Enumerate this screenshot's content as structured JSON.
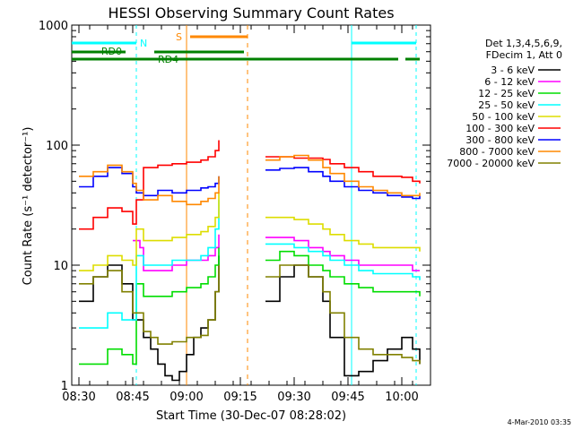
{
  "chart_data": {
    "type": "line",
    "title": "HESSI Observing Summary Count Rates",
    "xlabel": "Start Time (30-Dec-07 08:28:02)",
    "ylabel": "Count Rate (s⁻¹ detector⁻¹)",
    "yscale": "log",
    "ylim": [
      1,
      1000
    ],
    "xlim": [
      "08:28",
      "10:08"
    ],
    "x_ticks": [
      "08:30",
      "08:45",
      "09:00",
      "09:15",
      "09:30",
      "09:45",
      "10:00"
    ],
    "y_ticks": [
      "1",
      "10",
      "100",
      "1000"
    ],
    "timestamp": "4-Mar-2010 03:35",
    "legend": {
      "header": [
        "Det 1,3,4,5,6,9,",
        "FDecim 1, Att 0"
      ],
      "position": "right"
    },
    "colors": {
      "3 - 6 keV": "#000000",
      "6 - 12 keV": "#ff00ff",
      "12 - 25 keV": "#00dd00",
      "25 - 50 keV": "#00ffff",
      "50 - 100 keV": "#dddd00",
      "100 - 300 keV": "#ff0000",
      "300 - 800 keV": "#0000ff",
      "800 - 7000 keV": "#ff8800",
      "7000 - 20000 keV": "#808000",
      "night": "#00ffff",
      "saa": "#ff8800",
      "decimation": "#008000"
    },
    "gaps": [
      [
        "08:28",
        "08:30"
      ],
      [
        "09:09",
        "09:22"
      ]
    ],
    "series": [
      {
        "name": "3 - 6 keV",
        "x": [
          "08:30",
          "08:34",
          "08:38",
          "08:42",
          "08:45",
          "08:48",
          "08:50",
          "08:52",
          "08:54",
          "08:56",
          "08:58",
          "09:00",
          "09:02",
          "09:04",
          "09:06",
          "09:08",
          "09:09",
          "09:22",
          "09:26",
          "09:30",
          "09:34",
          "09:38",
          "09:40",
          "09:44",
          "09:48",
          "09:52",
          "09:56",
          "10:00",
          "10:03",
          "10:05"
        ],
        "y": [
          5,
          8,
          10,
          7,
          3.5,
          2.5,
          2,
          1.5,
          1.2,
          1.1,
          1.3,
          1.8,
          2.5,
          3,
          3.5,
          6,
          12,
          5,
          8,
          10,
          8,
          5,
          2.5,
          1.2,
          1.3,
          1.6,
          2,
          2.5,
          2,
          1.5
        ]
      },
      {
        "name": "6 - 12 keV",
        "x": [
          "08:45",
          "08:47",
          "08:48",
          "08:52",
          "08:56",
          "09:00",
          "09:04",
          "09:06",
          "09:08",
          "09:09",
          "09:22",
          "09:26",
          "09:30",
          "09:34",
          "09:38",
          "09:40",
          "09:44",
          "09:48",
          "09:52",
          "09:56",
          "10:00",
          "10:03",
          "10:05"
        ],
        "y": [
          16,
          14,
          9,
          9,
          10,
          11,
          11,
          12,
          14,
          18,
          17,
          17,
          16,
          14,
          13,
          12,
          11,
          10,
          10,
          10,
          10,
          9,
          9
        ]
      },
      {
        "name": "12 - 25 keV",
        "x": [
          "08:30",
          "08:34",
          "08:38",
          "08:42",
          "08:45",
          "08:46",
          "08:48",
          "08:52",
          "08:56",
          "09:00",
          "09:04",
          "09:06",
          "09:08",
          "09:09",
          "09:22",
          "09:26",
          "09:30",
          "09:34",
          "09:38",
          "09:40",
          "09:44",
          "09:48",
          "09:52",
          "09:56",
          "10:00",
          "10:03",
          "10:05"
        ],
        "y": [
          1.5,
          1.5,
          2,
          1.8,
          1.5,
          7,
          5.5,
          5.5,
          6,
          6.5,
          7,
          8,
          10,
          14,
          11,
          13,
          12,
          10,
          9,
          8,
          7,
          6.5,
          6,
          6,
          6,
          6,
          5.5
        ]
      },
      {
        "name": "25 - 50 keV",
        "x": [
          "08:30",
          "08:34",
          "08:38",
          "08:42",
          "08:45",
          "08:46",
          "08:48",
          "08:52",
          "08:56",
          "09:00",
          "09:04",
          "09:06",
          "09:08",
          "09:09",
          "09:22",
          "09:26",
          "09:30",
          "09:34",
          "09:38",
          "09:40",
          "09:44",
          "09:48",
          "09:52",
          "09:56",
          "10:00",
          "10:03",
          "10:05"
        ],
        "y": [
          3,
          3,
          4,
          3.5,
          3.5,
          12,
          10,
          10,
          11,
          11,
          12,
          14,
          20,
          35,
          15,
          15,
          14,
          13,
          12,
          11,
          10,
          9,
          8.5,
          8.5,
          8.5,
          8,
          7.5
        ]
      },
      {
        "name": "50 - 100 keV",
        "x": [
          "08:30",
          "08:34",
          "08:38",
          "08:42",
          "08:45",
          "08:46",
          "08:48",
          "08:52",
          "08:56",
          "09:00",
          "09:04",
          "09:06",
          "09:08",
          "09:09",
          "09:22",
          "09:26",
          "09:30",
          "09:34",
          "09:38",
          "09:40",
          "09:44",
          "09:48",
          "09:52",
          "09:56",
          "10:00",
          "10:03",
          "10:05"
        ],
        "y": [
          9,
          10,
          12,
          11,
          10,
          20,
          16,
          16,
          17,
          18,
          19,
          21,
          25,
          40,
          25,
          25,
          24,
          22,
          20,
          18,
          16,
          15,
          14,
          14,
          14,
          14,
          13
        ]
      },
      {
        "name": "100 - 300 keV",
        "x": [
          "08:30",
          "08:34",
          "08:38",
          "08:42",
          "08:45",
          "08:46",
          "08:48",
          "08:52",
          "08:56",
          "09:00",
          "09:04",
          "09:06",
          "09:08",
          "09:09",
          "09:22",
          "09:26",
          "09:30",
          "09:34",
          "09:38",
          "09:40",
          "09:44",
          "09:48",
          "09:52",
          "09:56",
          "10:00",
          "10:03",
          "10:05"
        ],
        "y": [
          20,
          25,
          30,
          28,
          22,
          35,
          65,
          68,
          70,
          72,
          75,
          80,
          90,
          110,
          80,
          80,
          78,
          78,
          76,
          70,
          65,
          60,
          55,
          55,
          54,
          50,
          48
        ]
      },
      {
        "name": "300 - 800 keV",
        "x": [
          "08:30",
          "08:34",
          "08:38",
          "08:42",
          "08:45",
          "08:46",
          "08:48",
          "08:52",
          "08:56",
          "09:00",
          "09:04",
          "09:06",
          "09:08",
          "09:09",
          "09:22",
          "09:26",
          "09:30",
          "09:34",
          "09:38",
          "09:40",
          "09:44",
          "09:48",
          "09:52",
          "09:56",
          "10:00",
          "10:03",
          "10:05"
        ],
        "y": [
          45,
          55,
          65,
          58,
          45,
          40,
          38,
          42,
          40,
          42,
          44,
          45,
          48,
          55,
          62,
          64,
          65,
          60,
          55,
          50,
          45,
          42,
          40,
          38,
          37,
          36,
          38
        ]
      },
      {
        "name": "800 - 7000 keV",
        "x": [
          "08:30",
          "08:34",
          "08:38",
          "08:42",
          "08:45",
          "08:46",
          "08:48",
          "08:52",
          "08:56",
          "09:00",
          "09:04",
          "09:06",
          "09:08",
          "09:09",
          "09:22",
          "09:26",
          "09:30",
          "09:34",
          "09:38",
          "09:40",
          "09:44",
          "09:48",
          "09:52",
          "09:56",
          "10:00",
          "10:03",
          "10:05"
        ],
        "y": [
          55,
          60,
          68,
          60,
          48,
          42,
          35,
          38,
          34,
          32,
          34,
          36,
          40,
          55,
          75,
          80,
          82,
          75,
          65,
          58,
          50,
          45,
          42,
          40,
          38,
          38,
          40
        ]
      },
      {
        "name": "7000 - 20000 keV",
        "x": [
          "08:30",
          "08:34",
          "08:38",
          "08:42",
          "08:45",
          "08:48",
          "08:50",
          "08:52",
          "08:56",
          "09:00",
          "09:04",
          "09:06",
          "09:08",
          "09:09",
          "09:22",
          "09:26",
          "09:30",
          "09:34",
          "09:38",
          "09:40",
          "09:44",
          "09:48",
          "09:52",
          "09:56",
          "10:00",
          "10:03",
          "10:05"
        ],
        "y": [
          7,
          8,
          9,
          6,
          4,
          2.8,
          2.5,
          2.2,
          2.3,
          2.5,
          2.6,
          3.5,
          6,
          10,
          8,
          10,
          10,
          8,
          6,
          4,
          2.5,
          2,
          1.8,
          1.8,
          1.7,
          1.6,
          1.5
        ]
      }
    ],
    "annotations": [
      {
        "text": "N",
        "type": "night",
        "segments": [
          [
            "08:28",
            "08:46"
          ],
          [
            "09:46",
            "10:04"
          ]
        ],
        "bounds": [
          "08:46",
          "09:46",
          "10:04"
        ]
      },
      {
        "text": "S",
        "type": "saa",
        "segments": [
          [
            "09:01",
            "09:17"
          ]
        ],
        "bounds": [
          "09:00",
          "09:17"
        ]
      },
      {
        "text": "RD0",
        "type": "decimation",
        "segments": [
          [
            "08:28",
            "08:43"
          ],
          [
            "08:51",
            "09:16"
          ]
        ]
      },
      {
        "text": "RD4",
        "type": "decimation",
        "segments": [
          [
            "08:28",
            "09:16"
          ],
          [
            "09:16",
            "09:31"
          ],
          [
            "09:31",
            "09:59"
          ],
          [
            "10:01",
            "10:05"
          ]
        ]
      }
    ]
  }
}
